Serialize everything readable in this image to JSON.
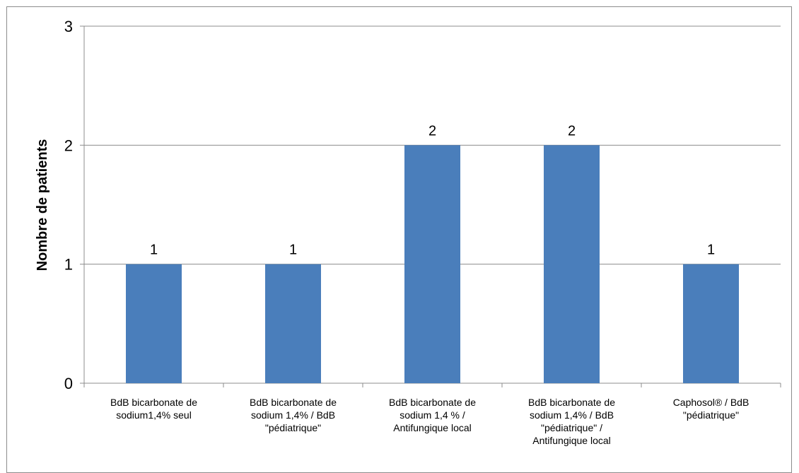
{
  "chart_data": {
    "type": "bar",
    "title": "",
    "xlabel": "",
    "ylabel": "Nombre de patients",
    "ylim": [
      0,
      3
    ],
    "yticks": [
      "0",
      "1",
      "2",
      "3"
    ],
    "grid": true,
    "legend": "none",
    "bar_color": "#4a7ebb",
    "categories": [
      [
        "BdB bicarbonate de",
        "sodium1,4% seul"
      ],
      [
        "BdB bicarbonate de",
        "sodium 1,4% / BdB",
        "\"pédiatrique\""
      ],
      [
        "BdB bicarbonate de",
        "sodium 1,4 % /",
        "Antifungique local"
      ],
      [
        "BdB bicarbonate de",
        "sodium 1,4% / BdB",
        "\"pédiatrique\" /",
        "Antifungique local"
      ],
      [
        "Caphosol® / BdB",
        "\"pédiatrique\""
      ]
    ],
    "values": [
      1,
      1,
      2,
      2,
      1
    ],
    "data_labels": [
      "1",
      "1",
      "2",
      "2",
      "1"
    ]
  }
}
